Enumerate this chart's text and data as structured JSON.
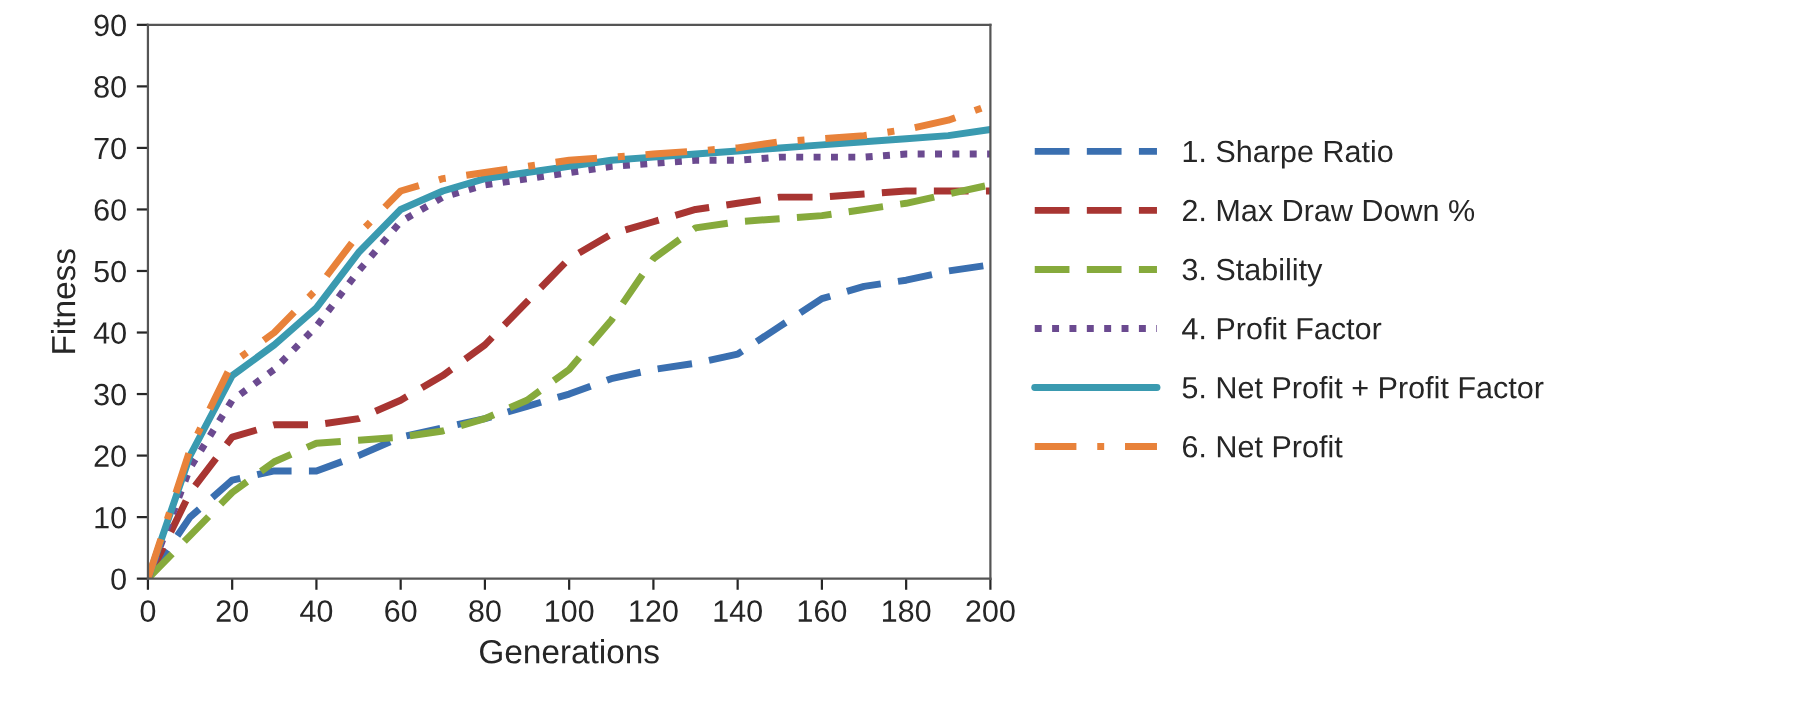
{
  "chart_data": {
    "type": "line",
    "xlabel": "Generations",
    "ylabel": "Fitness",
    "x": [
      0,
      10,
      20,
      30,
      40,
      50,
      60,
      70,
      80,
      90,
      100,
      110,
      120,
      130,
      140,
      150,
      160,
      170,
      180,
      190,
      200
    ],
    "series": [
      {
        "name": "1. Sharpe Ratio",
        "color": "#3a6fb0",
        "line_style": "dashed",
        "values": [
          0,
          10,
          16,
          17.5,
          17.5,
          20,
          23,
          24.5,
          26,
          28,
          30,
          32.5,
          34,
          35,
          36.5,
          41,
          45.5,
          47.5,
          48.5,
          50,
          51
        ]
      },
      {
        "name": "2. Max Draw Down %",
        "color": "#a83532",
        "line_style": "dashed",
        "values": [
          0,
          14,
          23,
          25,
          25,
          26,
          29,
          33,
          38,
          45,
          52,
          56,
          58,
          60,
          61,
          62,
          62,
          62.5,
          63,
          63,
          63
        ]
      },
      {
        "name": "3. Stability",
        "color": "#86aa3c",
        "line_style": "dashed",
        "values": [
          0,
          7,
          14,
          19,
          22,
          22.5,
          23,
          24,
          26,
          29,
          34,
          42,
          52,
          57,
          58,
          58.5,
          59,
          60,
          61,
          62.5,
          64
        ]
      },
      {
        "name": "4. Profit Factor",
        "color": "#6b4a90",
        "line_style": "dotted",
        "values": [
          0,
          18,
          29,
          34,
          41,
          50,
          58,
          62,
          64,
          65,
          66,
          67,
          67.5,
          68,
          68,
          68.5,
          68.5,
          68.5,
          69,
          69,
          69
        ]
      },
      {
        "name": "5. Net Profit + Profit Factor",
        "color": "#3a9ab0",
        "line_style": "solid",
        "values": [
          0,
          20,
          33,
          38,
          44,
          53,
          60,
          63,
          65,
          66,
          67,
          68,
          68.5,
          69,
          69.5,
          70,
          70.5,
          71,
          71.5,
          72,
          73
        ]
      },
      {
        "name": "6. Net Profit",
        "color": "#e8823a",
        "line_style": "dashdot",
        "values": [
          0,
          21,
          35,
          40,
          47,
          56,
          63,
          65,
          66,
          67,
          68,
          68.5,
          69,
          69.5,
          70,
          71,
          71.5,
          72,
          73,
          74.5,
          77
        ]
      }
    ],
    "xlim": [
      0,
      200
    ],
    "xticks": [
      0,
      20,
      40,
      60,
      80,
      100,
      120,
      140,
      160,
      180,
      200
    ],
    "ylim": [
      0,
      90
    ],
    "yticks": [
      0,
      10,
      20,
      30,
      40,
      50,
      60,
      70,
      80,
      90
    ],
    "grid": false,
    "legend": "right",
    "marker": "none"
  }
}
